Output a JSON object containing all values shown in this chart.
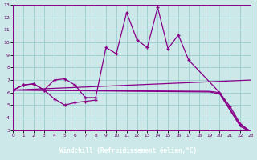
{
  "bg_color": "#cce8e8",
  "line_color": "#880088",
  "grid_color": "#99cccc",
  "xlim": [
    0,
    23
  ],
  "ylim": [
    3,
    13
  ],
  "xtick_vals": [
    0,
    1,
    2,
    3,
    4,
    5,
    6,
    7,
    8,
    9,
    10,
    11,
    12,
    13,
    14,
    15,
    16,
    17,
    18,
    19,
    20,
    21,
    22,
    23
  ],
  "xtick_labels": [
    "0",
    "1",
    "2",
    "3",
    "4",
    "5",
    "6",
    "7",
    "8",
    "9",
    "10",
    "11",
    "12",
    "13",
    "14",
    "15",
    "16",
    "17",
    "18",
    "19",
    "20",
    "21",
    "22",
    "23"
  ],
  "ytick_vals": [
    3,
    4,
    5,
    6,
    7,
    8,
    9,
    10,
    11,
    12,
    13
  ],
  "ytick_labels": [
    "3",
    "4",
    "5",
    "6",
    "7",
    "8",
    "9",
    "10",
    "11",
    "12",
    "13"
  ],
  "xlabel": "Windchill (Refroidissement éolien,°C)",
  "curve1_x": [
    0,
    1,
    2,
    3,
    4,
    5,
    6,
    7,
    8,
    9,
    10,
    11,
    12,
    13,
    14,
    15,
    16,
    17,
    20,
    21,
    22,
    23
  ],
  "curve1_y": [
    6.2,
    6.6,
    6.7,
    6.2,
    7.0,
    7.1,
    6.6,
    5.6,
    5.6,
    9.6,
    9.1,
    12.4,
    10.2,
    9.6,
    12.8,
    9.5,
    10.6,
    8.6,
    6.0,
    4.9,
    3.5,
    2.9
  ],
  "curve2_x": [
    0,
    1,
    2,
    3,
    4,
    5,
    6,
    7,
    8
  ],
  "curve2_y": [
    6.2,
    6.6,
    6.7,
    6.2,
    5.5,
    5.0,
    5.2,
    5.3,
    5.4
  ],
  "trend1_x": [
    0,
    23
  ],
  "trend1_y": [
    6.2,
    7.0
  ],
  "trend2_x": [
    0,
    19,
    20,
    22,
    23
  ],
  "trend2_y": [
    6.2,
    6.1,
    6.0,
    3.4,
    2.9
  ],
  "trend3_x": [
    0,
    19,
    20,
    22,
    23
  ],
  "trend3_y": [
    6.2,
    6.05,
    5.9,
    3.3,
    2.85
  ]
}
